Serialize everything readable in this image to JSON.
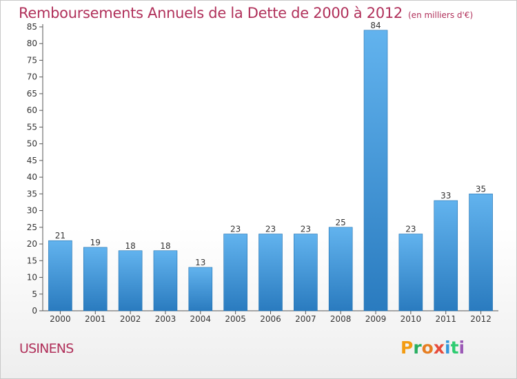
{
  "header": {
    "title": "Remboursements Annuels de la Dette de 2000 à 2012",
    "unit": "(en milliers d'€)"
  },
  "footer": {
    "commune": "USINENS",
    "logo_text": "Proxiti",
    "logo_colors": [
      "#f39c12",
      "#27ae60",
      "#e67e22",
      "#e74c3c",
      "#3498db",
      "#2ecc71",
      "#9b59b6"
    ]
  },
  "colors": {
    "title": "#b0305a",
    "bar_top": "#62b3ee",
    "bar_bottom": "#2a7bbf",
    "axis": "#555555",
    "grid": "#dddddd"
  },
  "chart_data": {
    "type": "bar",
    "title": "Remboursements Annuels de la Dette de 2000 à 2012",
    "subtitle": "(en milliers d'€)",
    "xlabel": "",
    "ylabel": "",
    "categories": [
      "2000",
      "2001",
      "2002",
      "2003",
      "2004",
      "2005",
      "2006",
      "2007",
      "2008",
      "2009",
      "2010",
      "2011",
      "2012"
    ],
    "values": [
      21,
      19,
      18,
      18,
      13,
      23,
      23,
      23,
      25,
      84,
      23,
      33,
      35
    ],
    "ylim": [
      0,
      85
    ],
    "yticks": [
      0,
      5,
      10,
      15,
      20,
      25,
      30,
      35,
      40,
      45,
      50,
      55,
      60,
      65,
      70,
      75,
      80,
      85
    ],
    "data_labels": true,
    "grid": false,
    "legend": "none"
  }
}
